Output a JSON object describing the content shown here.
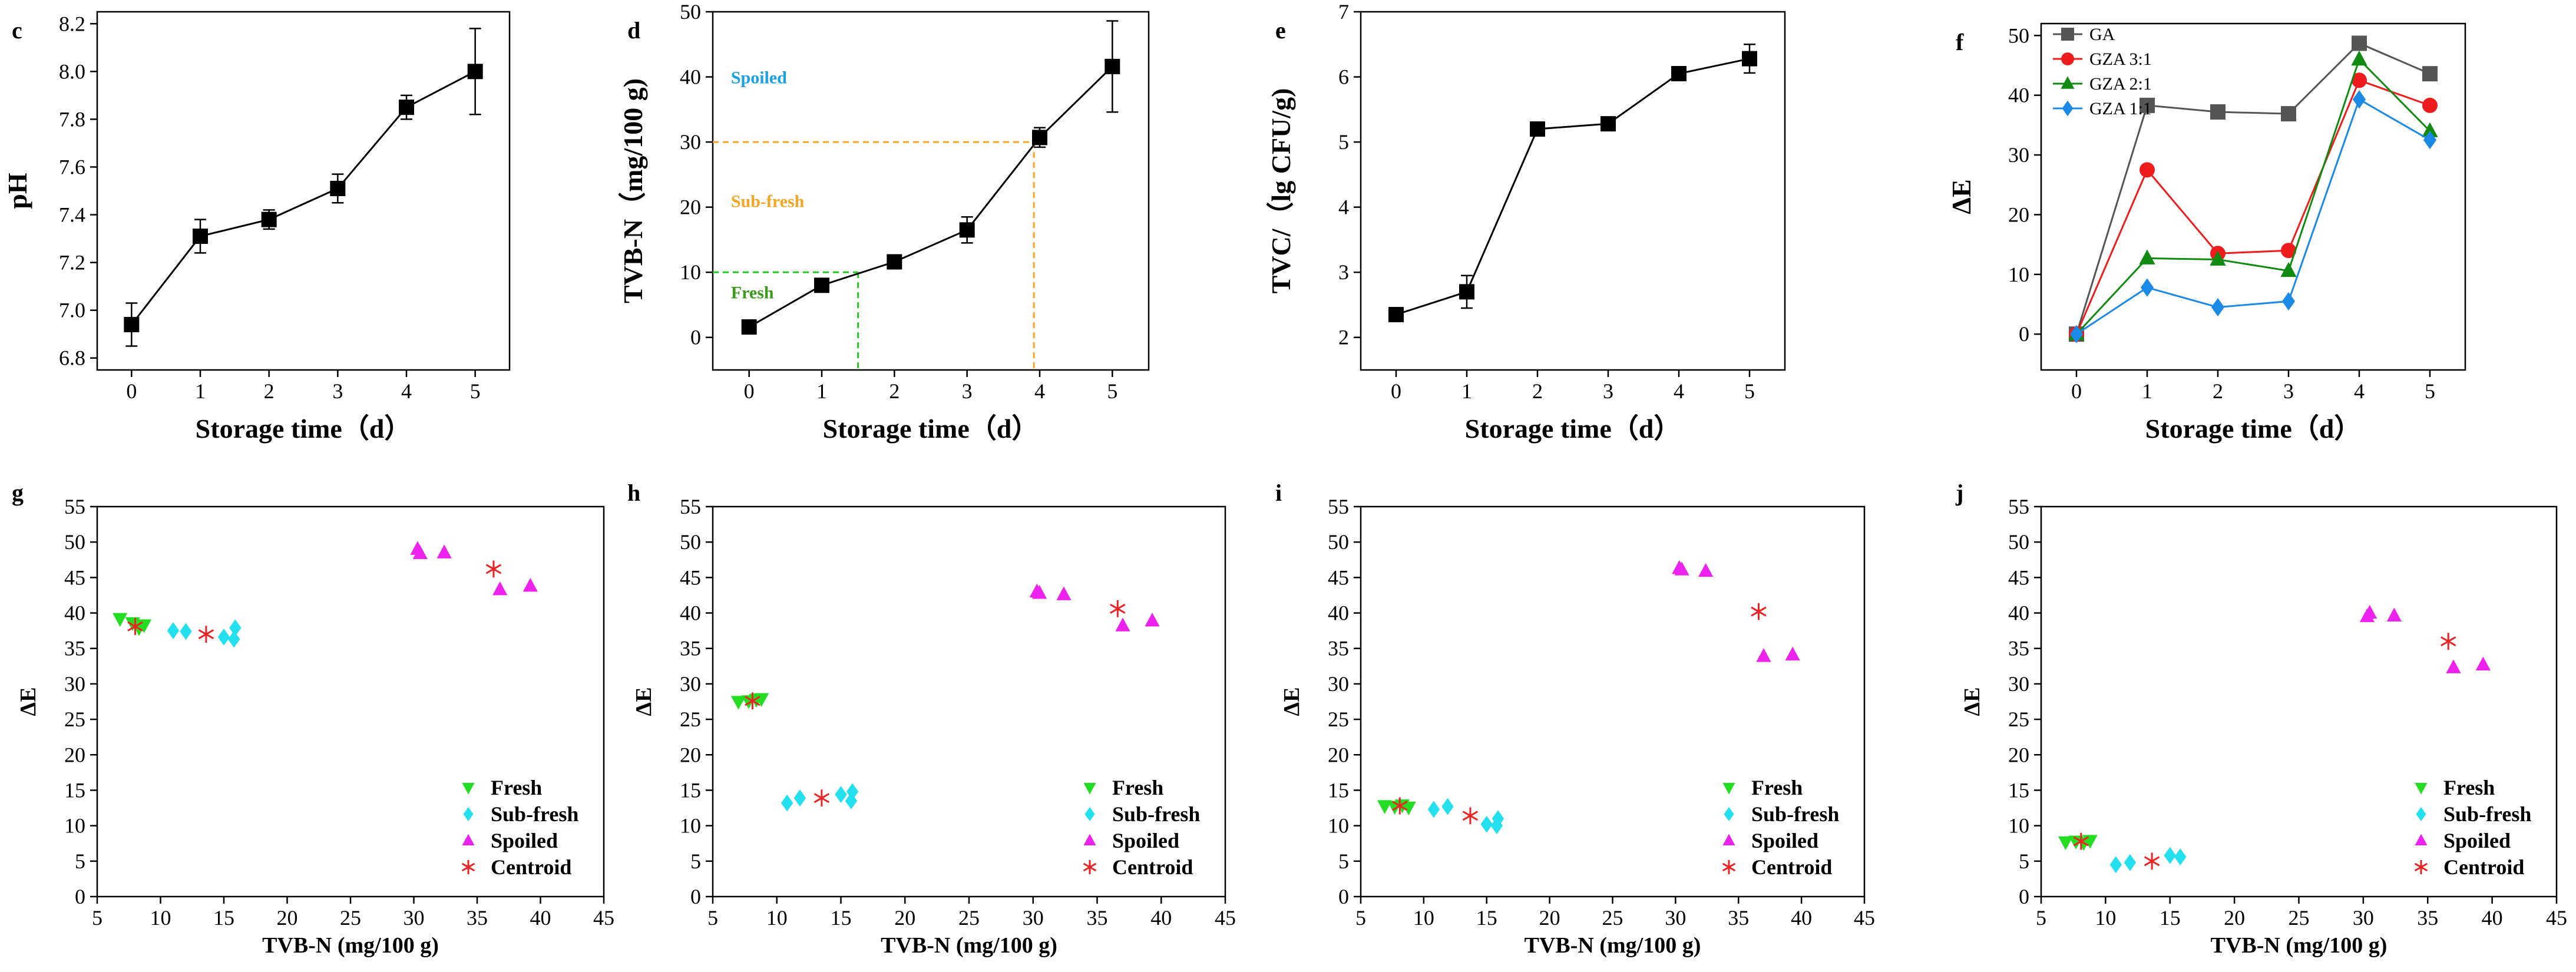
{
  "chart_data": [
    {
      "id": "c",
      "type": "line",
      "panel_label": "c",
      "xlabel": "Storage time（d）",
      "ylabel": "pH",
      "xlim": [
        -0.5,
        5.5
      ],
      "ylim": [
        6.75,
        8.25
      ],
      "xticks": [
        0,
        1,
        2,
        3,
        4,
        5
      ],
      "xtick_labels": [
        "0",
        "1",
        "2",
        "3",
        "4",
        "5"
      ],
      "yticks": [
        6.8,
        7.0,
        7.2,
        7.4,
        7.6,
        7.8,
        8.0,
        8.2
      ],
      "ytick_labels": [
        "6.8",
        "7.0",
        "7.2",
        "7.4",
        "7.6",
        "7.8",
        "8.0",
        "8.2"
      ],
      "series": [
        {
          "name": "pH",
          "color": "#000000",
          "marker": "square",
          "x": [
            0,
            1,
            2,
            3,
            4,
            5
          ],
          "y": [
            6.94,
            7.31,
            7.38,
            7.51,
            7.85,
            8.0
          ],
          "err": [
            0.09,
            0.07,
            0.04,
            0.06,
            0.05,
            0.18
          ]
        }
      ]
    },
    {
      "id": "d",
      "type": "line",
      "panel_label": "d",
      "xlabel": "Storage time（d）",
      "ylabel": "TVB-N（mg/100 g)",
      "xlim": [
        -0.5,
        5.5
      ],
      "ylim": [
        -5,
        50
      ],
      "xticks": [
        0,
        1,
        2,
        3,
        4,
        5
      ],
      "xtick_labels": [
        "0",
        "1",
        "2",
        "3",
        "4",
        "5"
      ],
      "yticks": [
        0,
        10,
        20,
        30,
        40,
        50
      ],
      "ytick_labels": [
        "0",
        "10",
        "20",
        "30",
        "40",
        "50"
      ],
      "series": [
        {
          "name": "TVB-N",
          "color": "#000000",
          "marker": "square",
          "x": [
            0,
            1,
            2,
            3,
            4,
            5
          ],
          "y": [
            1.6,
            8.0,
            11.6,
            16.5,
            30.7,
            41.6
          ],
          "err": [
            0.6,
            0.6,
            0.6,
            2.0,
            1.5,
            7.0
          ]
        }
      ],
      "reference_lines": [
        {
          "y": 10,
          "x_end": 1.5,
          "color": "#22c722"
        },
        {
          "y": 30,
          "x_end": 3.92,
          "color": "#f5a623"
        }
      ],
      "annotations": [
        {
          "text": "Spoiled",
          "x": -0.25,
          "y": 39,
          "color": "#1ba1e2"
        },
        {
          "text": "Sub-fresh",
          "x": -0.25,
          "y": 20,
          "color": "#f5a623"
        },
        {
          "text": "Fresh",
          "x": -0.25,
          "y": 6,
          "color": "#3c9a1a"
        }
      ]
    },
    {
      "id": "e",
      "type": "line",
      "panel_label": "e",
      "xlabel": "Storage time（d）",
      "ylabel": "TVC/（lg CFU/g)",
      "xlim": [
        -0.5,
        5.5
      ],
      "ylim": [
        1.5,
        7.0
      ],
      "xticks": [
        0,
        1,
        2,
        3,
        4,
        5
      ],
      "xtick_labels": [
        "0",
        "1",
        "2",
        "3",
        "4",
        "5"
      ],
      "yticks": [
        2,
        3,
        4,
        5,
        6,
        7
      ],
      "ytick_labels": [
        "2",
        "3",
        "4",
        "5",
        "6",
        "7"
      ],
      "series": [
        {
          "name": "TVC",
          "color": "#000000",
          "marker": "square",
          "x": [
            0,
            1,
            2,
            3,
            4,
            5
          ],
          "y": [
            2.35,
            2.7,
            5.2,
            5.28,
            6.05,
            6.28
          ],
          "err": [
            0.04,
            0.25,
            0.08,
            0.04,
            0.07,
            0.22
          ]
        }
      ]
    },
    {
      "id": "f",
      "type": "line",
      "panel_label": "f",
      "xlabel": "Storage time（d）",
      "ylabel": "ΔE",
      "xlim": [
        -0.5,
        5.5
      ],
      "ylim": [
        -6,
        52
      ],
      "xticks": [
        0,
        1,
        2,
        3,
        4,
        5
      ],
      "xtick_labels": [
        "0",
        "1",
        "2",
        "3",
        "4",
        "5"
      ],
      "yticks": [
        0,
        10,
        20,
        30,
        40,
        50
      ],
      "ytick_labels": [
        "0",
        "10",
        "20",
        "30",
        "40",
        "50"
      ],
      "legend_position": "top-left",
      "series": [
        {
          "name": "GA",
          "color": "#555555",
          "marker": "square",
          "x": [
            0,
            1,
            2,
            3,
            4,
            5
          ],
          "y": [
            0,
            38.3,
            37.2,
            36.9,
            48.7,
            43.6
          ]
        },
        {
          "name": "GZA 3:1",
          "color": "#ee1c1c",
          "marker": "circle",
          "x": [
            0,
            1,
            2,
            3,
            4,
            5
          ],
          "y": [
            0,
            27.5,
            13.5,
            14.0,
            42.5,
            38.3
          ]
        },
        {
          "name": "GZA 2:1",
          "color": "#118a11",
          "marker": "triangle-up",
          "x": [
            0,
            1,
            2,
            3,
            4,
            5
          ],
          "y": [
            0,
            12.7,
            12.5,
            10.6,
            46.0,
            34.0
          ]
        },
        {
          "name": "GZA 1:1",
          "color": "#1a8ae6",
          "marker": "diamond",
          "x": [
            0,
            1,
            2,
            3,
            4,
            5
          ],
          "y": [
            0,
            7.8,
            4.5,
            5.5,
            39.3,
            32.5
          ]
        }
      ]
    },
    {
      "id": "g",
      "type": "scatter",
      "panel_label": "g",
      "xlabel": "TVB-N (mg/100 g)",
      "ylabel": "ΔE",
      "xlim": [
        5,
        45
      ],
      "ylim": [
        0,
        55
      ],
      "xticks": [
        5,
        10,
        15,
        20,
        25,
        30,
        35,
        40,
        45
      ],
      "xtick_labels": [
        "5",
        "10",
        "15",
        "20",
        "25",
        "30",
        "35",
        "40",
        "45"
      ],
      "yticks": [
        0,
        5,
        10,
        15,
        20,
        25,
        30,
        35,
        40,
        45,
        50,
        55
      ],
      "ytick_labels": [
        "0",
        "5",
        "10",
        "15",
        "20",
        "25",
        "30",
        "35",
        "40",
        "45",
        "50",
        "55"
      ],
      "legend_position": "bottom-right",
      "series": [
        {
          "name": "Fresh",
          "color": "#22dd22",
          "marker": "triangle-down",
          "x": [
            6.8,
            7.8,
            8.3,
            8.7
          ],
          "y": [
            39.2,
            38.6,
            37.9,
            38.3
          ]
        },
        {
          "name": "Sub-fresh",
          "color": "#22e0ee",
          "marker": "diamond",
          "x": [
            11.0,
            12.0,
            15.0,
            15.8,
            15.9
          ],
          "y": [
            37.5,
            37.4,
            36.6,
            36.3,
            37.9
          ]
        },
        {
          "name": "Spoiled",
          "color": "#ee22ee",
          "marker": "triangle-up",
          "x": [
            30.3,
            30.5,
            32.4,
            36.8,
            39.2
          ],
          "y": [
            49.0,
            48.4,
            48.5,
            43.3,
            43.8
          ]
        },
        {
          "name": "Centroid",
          "color": "#ee2222",
          "marker": "asterisk",
          "x": [
            8.0,
            13.6,
            36.3
          ],
          "y": [
            38.1,
            37.0,
            46.2
          ]
        }
      ]
    },
    {
      "id": "h",
      "type": "scatter",
      "panel_label": "h",
      "xlabel": "TVB-N (mg/100 g)",
      "ylabel": "ΔE",
      "xlim": [
        5,
        45
      ],
      "ylim": [
        0,
        55
      ],
      "xticks": [
        5,
        10,
        15,
        20,
        25,
        30,
        35,
        40,
        45
      ],
      "xtick_labels": [
        "5",
        "10",
        "15",
        "20",
        "25",
        "30",
        "35",
        "40",
        "45"
      ],
      "yticks": [
        0,
        5,
        10,
        15,
        20,
        25,
        30,
        35,
        40,
        45,
        50,
        55
      ],
      "ytick_labels": [
        "0",
        "5",
        "10",
        "15",
        "20",
        "25",
        "30",
        "35",
        "40",
        "45",
        "50",
        "55"
      ],
      "legend_position": "bottom-right",
      "series": [
        {
          "name": "Fresh",
          "color": "#22dd22",
          "marker": "triangle-down",
          "x": [
            7.0,
            7.8,
            8.4,
            8.8
          ],
          "y": [
            27.5,
            27.6,
            27.8,
            27.9
          ]
        },
        {
          "name": "Sub-fresh",
          "color": "#22e0ee",
          "marker": "diamond",
          "x": [
            10.8,
            11.8,
            15.0,
            15.8,
            15.9
          ],
          "y": [
            13.2,
            13.9,
            14.4,
            13.5,
            14.8
          ]
        },
        {
          "name": "Spoiled",
          "color": "#ee22ee",
          "marker": "triangle-up",
          "x": [
            30.3,
            30.5,
            32.4,
            37.0,
            39.3
          ],
          "y": [
            43.0,
            42.8,
            42.6,
            38.2,
            38.9
          ]
        },
        {
          "name": "Centroid",
          "color": "#ee2222",
          "marker": "asterisk",
          "x": [
            8.1,
            13.5,
            36.6
          ],
          "y": [
            27.6,
            13.9,
            40.6
          ]
        }
      ]
    },
    {
      "id": "i",
      "type": "scatter",
      "panel_label": "i",
      "xlabel": "TVB-N (mg/100 g)",
      "ylabel": "ΔE",
      "xlim": [
        5,
        45
      ],
      "ylim": [
        0,
        55
      ],
      "xticks": [
        5,
        10,
        15,
        20,
        25,
        30,
        35,
        40,
        45
      ],
      "xtick_labels": [
        "5",
        "10",
        "15",
        "20",
        "25",
        "30",
        "35",
        "40",
        "45"
      ],
      "yticks": [
        0,
        5,
        10,
        15,
        20,
        25,
        30,
        35,
        40,
        45,
        50,
        55
      ],
      "ytick_labels": [
        "0",
        "5",
        "10",
        "15",
        "20",
        "25",
        "30",
        "35",
        "40",
        "45",
        "50",
        "55"
      ],
      "legend_position": "bottom-right",
      "series": [
        {
          "name": "Fresh",
          "color": "#22dd22",
          "marker": "triangle-down",
          "x": [
            6.9,
            7.7,
            8.3,
            8.8
          ],
          "y": [
            12.8,
            12.7,
            12.9,
            12.6
          ]
        },
        {
          "name": "Sub-fresh",
          "color": "#22e0ee",
          "marker": "diamond",
          "x": [
            10.8,
            11.9,
            15.0,
            15.8,
            15.9
          ],
          "y": [
            12.3,
            12.7,
            10.2,
            10.0,
            11.0
          ]
        },
        {
          "name": "Spoiled",
          "color": "#ee22ee",
          "marker": "triangle-up",
          "x": [
            30.3,
            30.5,
            32.4,
            37.0,
            39.3
          ],
          "y": [
            46.3,
            46.1,
            45.9,
            33.9,
            34.1
          ]
        },
        {
          "name": "Centroid",
          "color": "#ee2222",
          "marker": "asterisk",
          "x": [
            8.1,
            13.7,
            36.6
          ],
          "y": [
            12.8,
            11.4,
            40.2
          ]
        }
      ]
    },
    {
      "id": "j",
      "type": "scatter",
      "panel_label": "j",
      "xlabel": "TVB-N (mg/100 g)",
      "ylabel": "ΔE",
      "xlim": [
        5,
        45
      ],
      "ylim": [
        0,
        55
      ],
      "xticks": [
        5,
        10,
        15,
        20,
        25,
        30,
        35,
        40,
        45
      ],
      "xtick_labels": [
        "5",
        "10",
        "15",
        "20",
        "25",
        "30",
        "35",
        "40",
        "45"
      ],
      "yticks": [
        0,
        5,
        10,
        15,
        20,
        25,
        30,
        35,
        40,
        45,
        50,
        55
      ],
      "ytick_labels": [
        "0",
        "5",
        "10",
        "15",
        "20",
        "25",
        "30",
        "35",
        "40",
        "45",
        "50",
        "55"
      ],
      "legend_position": "bottom-right",
      "series": [
        {
          "name": "Fresh",
          "color": "#22dd22",
          "marker": "triangle-down",
          "x": [
            6.9,
            7.7,
            8.3,
            8.8
          ],
          "y": [
            7.7,
            7.8,
            7.6,
            7.9
          ]
        },
        {
          "name": "Sub-fresh",
          "color": "#22e0ee",
          "marker": "diamond",
          "x": [
            10.8,
            11.9,
            15.0,
            15.8
          ],
          "y": [
            4.5,
            4.8,
            5.8,
            5.6
          ]
        },
        {
          "name": "Spoiled",
          "color": "#ee22ee",
          "marker": "triangle-up",
          "x": [
            30.3,
            30.5,
            32.4,
            37.0,
            39.3
          ],
          "y": [
            39.5,
            40.0,
            39.6,
            32.3,
            32.7
          ]
        },
        {
          "name": "Centroid",
          "color": "#ee2222",
          "marker": "asterisk",
          "x": [
            8.1,
            13.6,
            36.6
          ],
          "y": [
            7.8,
            5.0,
            36.0
          ]
        }
      ]
    }
  ]
}
